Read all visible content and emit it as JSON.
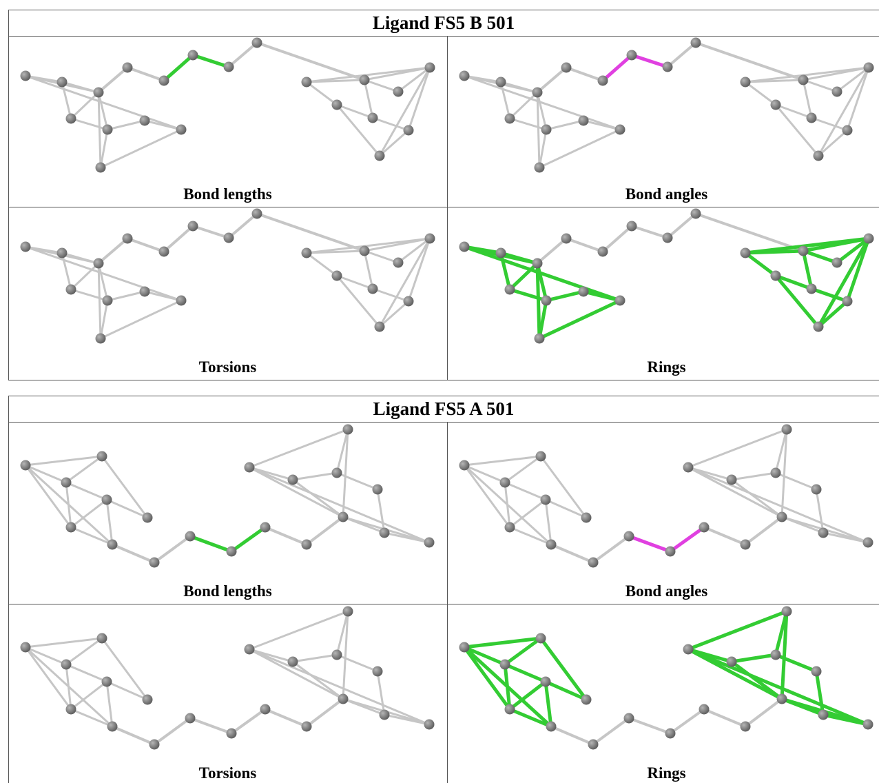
{
  "panels": [
    {
      "title": "Ligand FS5 B 501",
      "cells": [
        "Bond lengths",
        "Bond angles",
        "Torsions",
        "Rings"
      ]
    },
    {
      "title": "Ligand FS5 A 501",
      "cells": [
        "Bond lengths",
        "Bond angles",
        "Torsions",
        "Rings"
      ]
    }
  ]
}
